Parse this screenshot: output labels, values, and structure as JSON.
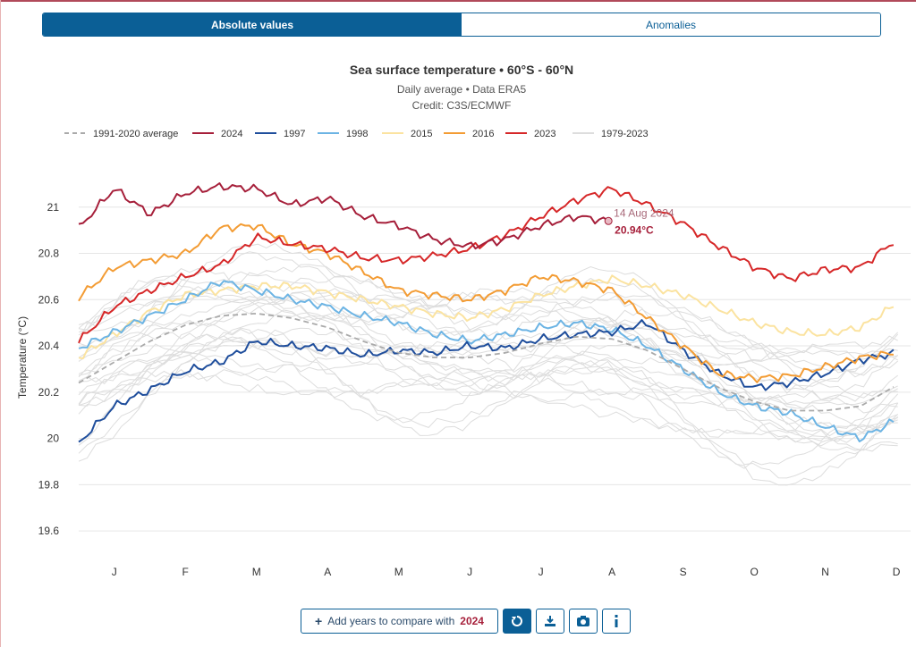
{
  "tabs": [
    {
      "label": "Absolute values",
      "active": true
    },
    {
      "label": "Anomalies",
      "active": false
    }
  ],
  "toolbar": {
    "add_label": "Add years to compare with",
    "add_year": "2024",
    "reset_icon": "reset-icon",
    "download_icon": "download-icon",
    "camera_icon": "camera-icon",
    "info_icon": "info-icon"
  },
  "colors": {
    "accent": "#0b5f96",
    "y2024": "#a61f3a",
    "y2023": "#d62728",
    "y2016": "#f39c34",
    "y2015": "#fbe3a0",
    "y1998": "#6cb4e4",
    "y1997": "#1f4e9c",
    "avg": "#aaaaaa",
    "bg_years": "#dddddd"
  },
  "chart_data": {
    "type": "line",
    "title": "Sea surface temperature • 60°S - 60°N",
    "subtitle": "Daily average • Data ERA5",
    "credit": "Credit: C3S/ECMWF",
    "xlabel": "",
    "ylabel": "Temperature (°C)",
    "x_ticks": [
      "J",
      "F",
      "M",
      "A",
      "M",
      "J",
      "J",
      "A",
      "S",
      "O",
      "N",
      "D"
    ],
    "y_ticks": [
      "19.6",
      "19.8",
      "20",
      "20.2",
      "20.4",
      "20.6",
      "20.8",
      "21"
    ],
    "ylim": [
      19.5,
      21.2
    ],
    "grid": "horizontal",
    "legend_position": "top",
    "legend": [
      "1991-2020 average",
      "2024",
      "1997",
      "1998",
      "2015",
      "2016",
      "2023",
      "1979-2023"
    ],
    "tooltip": {
      "date": "14 Aug 2024",
      "value": "20.94°C",
      "x": 7.45,
      "y": 20.94
    },
    "series": [
      {
        "name": "1991-2020 average",
        "color": "#aaaaaa",
        "dashed": true,
        "x": [
          0,
          0.5,
          1,
          1.5,
          2,
          2.5,
          3,
          3.5,
          4,
          4.5,
          5,
          5.5,
          6,
          6.5,
          7,
          7.5,
          8,
          8.5,
          9,
          9.5,
          10,
          10.5,
          11,
          11.5
        ],
        "y": [
          20.24,
          20.33,
          20.42,
          20.49,
          20.53,
          20.54,
          20.52,
          20.48,
          20.42,
          20.37,
          20.35,
          20.35,
          20.37,
          20.41,
          20.44,
          20.43,
          20.38,
          20.3,
          20.22,
          20.16,
          20.12,
          20.12,
          20.14,
          20.23
        ]
      },
      {
        "name": "2024",
        "color": "#a61f3a",
        "x": [
          0,
          0.5,
          1,
          1.5,
          2,
          2.5,
          3,
          3.5,
          4,
          4.5,
          5,
          5.5,
          6,
          6.5,
          7,
          7.45
        ],
        "y": [
          20.91,
          21.08,
          20.97,
          21.06,
          21.09,
          21.08,
          21.01,
          21.04,
          20.96,
          20.92,
          20.86,
          20.83,
          20.86,
          20.92,
          20.96,
          20.94
        ]
      },
      {
        "name": "1997",
        "color": "#1f4e9c",
        "x": [
          0,
          0.5,
          1,
          1.5,
          2,
          2.5,
          3,
          3.5,
          4,
          4.5,
          5,
          5.5,
          6,
          6.5,
          7,
          7.5,
          8,
          8.5,
          9,
          9.5,
          10,
          10.5,
          11,
          11.5
        ],
        "y": [
          19.98,
          20.14,
          20.21,
          20.29,
          20.33,
          20.42,
          20.4,
          20.39,
          20.36,
          20.38,
          20.37,
          20.4,
          20.39,
          20.43,
          20.45,
          20.46,
          20.5,
          20.38,
          20.28,
          20.22,
          20.24,
          20.28,
          20.34,
          20.37
        ]
      },
      {
        "name": "1998",
        "color": "#6cb4e4",
        "x": [
          0,
          0.5,
          1,
          1.5,
          2,
          2.5,
          3,
          3.5,
          4,
          4.5,
          5,
          5.5,
          6,
          6.5,
          7,
          7.5,
          8,
          8.5,
          9,
          9.5,
          10,
          10.5,
          11,
          11.5
        ],
        "y": [
          20.39,
          20.46,
          20.53,
          20.6,
          20.68,
          20.64,
          20.6,
          20.57,
          20.53,
          20.5,
          20.45,
          20.42,
          20.45,
          20.48,
          20.5,
          20.47,
          20.4,
          20.3,
          20.2,
          20.14,
          20.11,
          20.05,
          20.0,
          20.08
        ]
      },
      {
        "name": "2015",
        "color": "#fbe3a0",
        "x": [
          0,
          0.5,
          1,
          1.5,
          2,
          2.5,
          3,
          3.5,
          4,
          4.5,
          5,
          5.5,
          6,
          6.5,
          7,
          7.5,
          8,
          8.5,
          9,
          9.5,
          10,
          10.5,
          11,
          11.5
        ],
        "y": [
          20.35,
          20.45,
          20.55,
          20.62,
          20.64,
          20.66,
          20.66,
          20.63,
          20.6,
          20.57,
          20.54,
          20.52,
          20.56,
          20.62,
          20.66,
          20.69,
          20.66,
          20.62,
          20.56,
          20.5,
          20.46,
          20.45,
          20.48,
          20.58
        ]
      },
      {
        "name": "2016",
        "color": "#f39c34",
        "x": [
          0,
          0.5,
          1,
          1.5,
          2,
          2.5,
          3,
          3.5,
          4,
          4.5,
          5,
          5.5,
          6,
          6.5,
          7,
          7.5,
          8,
          8.5,
          9,
          9.5,
          10,
          10.5,
          11,
          11.5
        ],
        "y": [
          20.61,
          20.74,
          20.77,
          20.8,
          20.91,
          20.92,
          20.84,
          20.8,
          20.72,
          20.64,
          20.62,
          20.6,
          20.64,
          20.7,
          20.68,
          20.64,
          20.52,
          20.4,
          20.28,
          20.26,
          20.27,
          20.31,
          20.35,
          20.37
        ]
      },
      {
        "name": "2023",
        "color": "#d62728",
        "x": [
          0,
          0.5,
          1,
          1.5,
          2,
          2.5,
          3,
          3.5,
          4,
          4.5,
          5,
          5.5,
          6,
          6.5,
          7,
          7.5,
          8,
          8.5,
          9,
          9.5,
          10,
          10.5,
          11,
          11.5
        ],
        "y": [
          20.42,
          20.57,
          20.64,
          20.7,
          20.75,
          20.87,
          20.84,
          20.82,
          20.78,
          20.77,
          20.79,
          20.82,
          20.88,
          20.96,
          21.03,
          21.08,
          21.01,
          20.93,
          20.83,
          20.74,
          20.69,
          20.73,
          20.74,
          20.86
        ]
      }
    ]
  }
}
